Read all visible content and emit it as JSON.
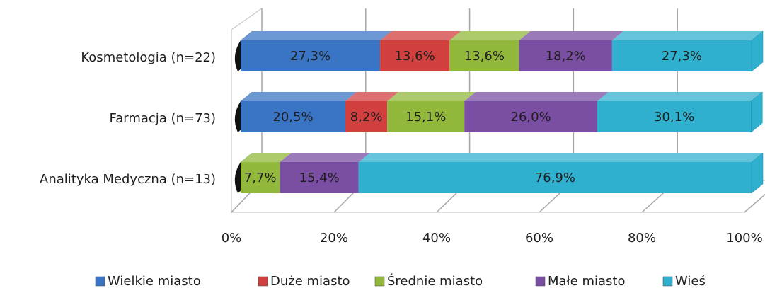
{
  "chart_data": {
    "type": "bar3d_stacked_horizontal",
    "categories": [
      "Kosmetologia (n=22)",
      "Farmacja (n=73)",
      "Analityka Medyczna (n=13)"
    ],
    "series": [
      {
        "name": "Wielkie miasto",
        "color": "#3a74c4",
        "values": [
          27.3,
          20.5,
          0
        ],
        "value_labels": [
          "27,3%",
          "20,5%",
          null
        ]
      },
      {
        "name": "Duże miasto",
        "color": "#d23f3f",
        "values": [
          13.6,
          8.2,
          0
        ],
        "value_labels": [
          "13,6%",
          "8,2%",
          null
        ]
      },
      {
        "name": "Średnie miasto",
        "color": "#92b83b",
        "values": [
          13.6,
          15.1,
          7.7
        ],
        "value_labels": [
          "13,6%",
          "15,1%",
          "7,7%"
        ]
      },
      {
        "name": "Małe miasto",
        "color": "#7a4ea3",
        "values": [
          18.2,
          26.0,
          15.4
        ],
        "value_labels": [
          "18,2%",
          "26,0%",
          "15,4%"
        ]
      },
      {
        "name": "Wieś",
        "color": "#2fb0cf",
        "values": [
          27.3,
          30.1,
          76.9
        ],
        "value_labels": [
          "27,3%",
          "30,1%",
          "76,9%"
        ]
      }
    ],
    "xlim": [
      0,
      100
    ],
    "xticks": [
      {
        "value": 0,
        "label": "0%"
      },
      {
        "value": 20,
        "label": "20%"
      },
      {
        "value": 40,
        "label": "40%"
      },
      {
        "value": 60,
        "label": "60%"
      },
      {
        "value": 80,
        "label": "80%"
      },
      {
        "value": 100,
        "label": "100%"
      }
    ],
    "grid": true,
    "legend": "bottom"
  }
}
